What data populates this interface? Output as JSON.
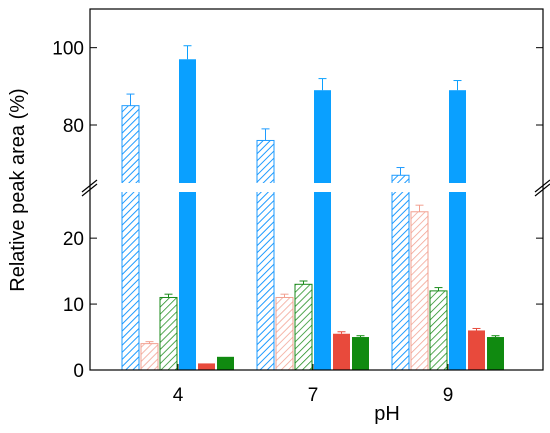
{
  "chart_data": {
    "type": "bar",
    "xlabel": "pH",
    "ylabel": "Relative peak area (%)",
    "categories": [
      "4",
      "7",
      "9"
    ],
    "y_ticks_lower": [
      "0",
      "10",
      "20"
    ],
    "y_ticks_upper": [
      "80",
      "100"
    ],
    "axis_break": true,
    "ylim_lower": [
      0,
      27
    ],
    "ylim_upper": [
      65,
      110
    ],
    "series": [
      {
        "values": [
          85,
          76,
          67
        ],
        "errors": [
          3,
          3,
          2
        ],
        "color": "#1e9bff",
        "style": "hatched"
      },
      {
        "values": [
          4,
          11,
          24
        ],
        "errors": [
          0.3,
          0.5,
          1
        ],
        "color": "#f2a090",
        "style": "hatched"
      },
      {
        "values": [
          11,
          13,
          12
        ],
        "errors": [
          0.5,
          0.5,
          0.5
        ],
        "color": "#1a8a1a",
        "style": "hatched"
      },
      {
        "values": [
          97,
          89,
          89
        ],
        "errors": [
          3.5,
          3,
          2.5
        ],
        "color": "#0aa0ff",
        "style": "solid"
      },
      {
        "values": [
          1,
          5.5,
          6
        ],
        "errors": [
          0,
          0.3,
          0.3
        ],
        "color": "#e84a3c",
        "style": "solid"
      },
      {
        "values": [
          2,
          5,
          5
        ],
        "errors": [
          0,
          0.2,
          0.2
        ],
        "color": "#108a10",
        "style": "solid"
      }
    ],
    "grid": false,
    "legend": "none"
  }
}
